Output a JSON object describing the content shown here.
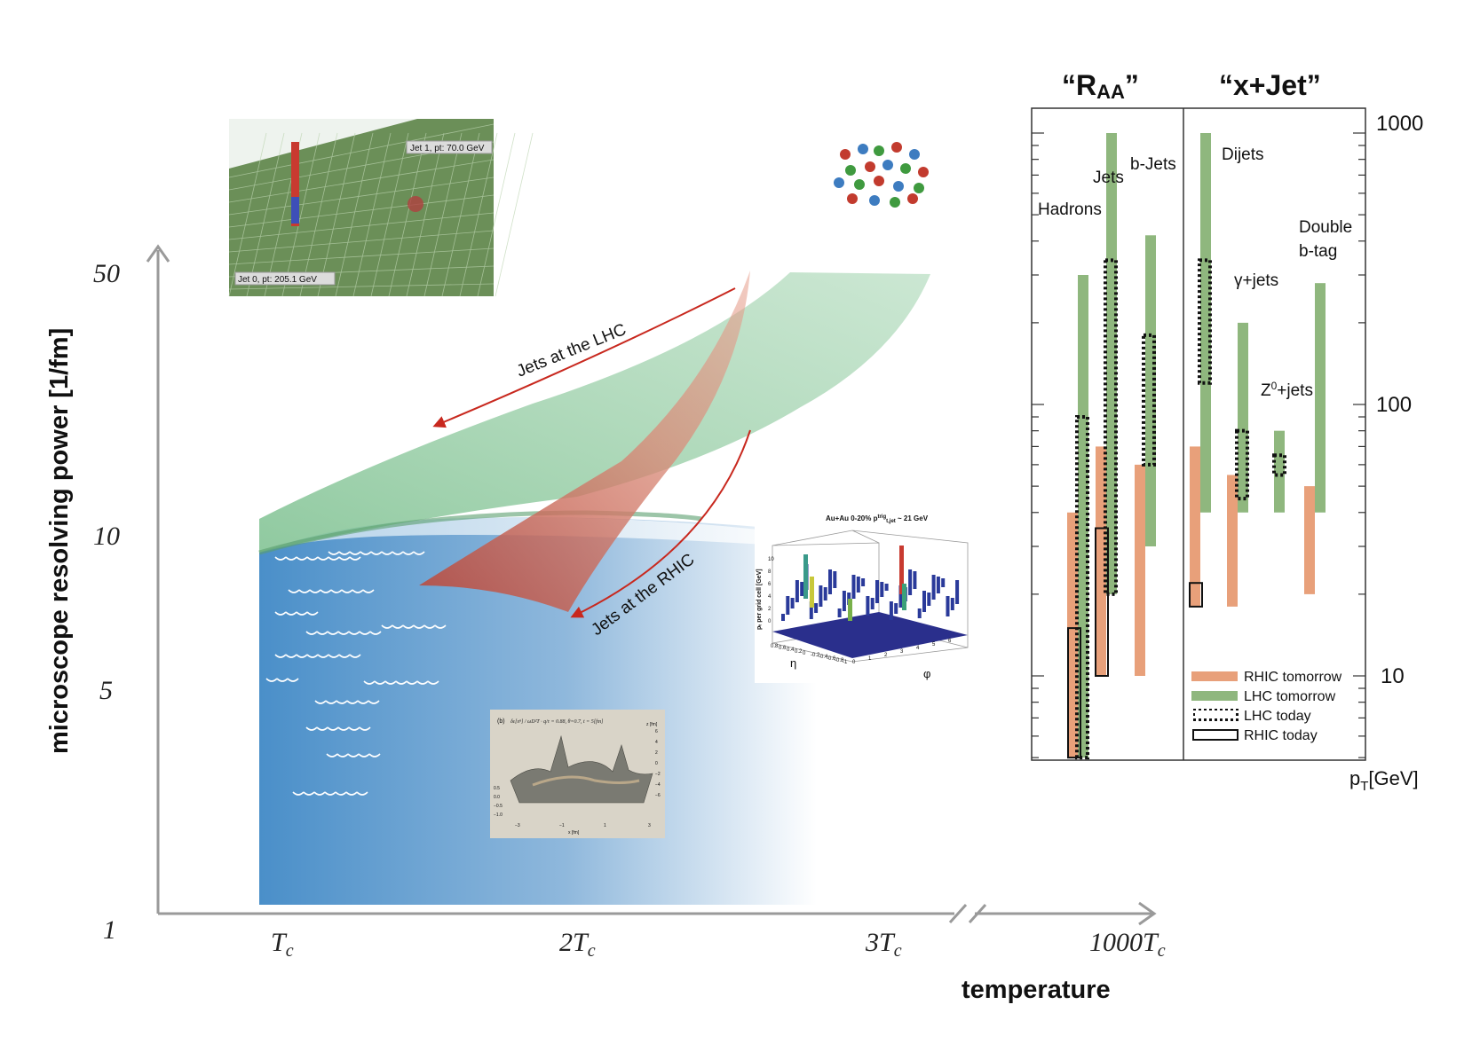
{
  "left_panel": {
    "y_axis_title": "microscope resolving power  [1/fm]",
    "y_ticks": [
      "50",
      "10",
      "5",
      "1"
    ],
    "x_axis_title": "temperature",
    "x_ticks": [
      {
        "base": "T",
        "sub": "c"
      },
      {
        "base": "2T",
        "sub": "c"
      },
      {
        "base": "3T",
        "sub": "c"
      },
      {
        "base": "1000T",
        "sub": "c"
      }
    ],
    "arrow_labels": {
      "lhc": "Jets at the LHC",
      "rhic": "Jets at the RHIC"
    },
    "colors": {
      "lhc_band": "#7cc08f",
      "rhic_band": "#c8574a",
      "liquid": "#4a8fc9",
      "arrow": "#c8281e",
      "axis": "#9a9a9a"
    }
  },
  "insets": {
    "lego_jets": {
      "label_jet1": "Jet 1, pt: 70.0 GeV",
      "label_jet0": "Jet 0, pt: 205.1 GeV"
    },
    "lego_auau": {
      "title": "Au+Au 0-20% p",
      "title_sup": "trig",
      "title_sub": "t,jet",
      "title_tail": " ~ 21 GeV",
      "z_label": "pₜ per grid cell [GeV]",
      "z_ticks": [
        "10",
        "8",
        "6",
        "4",
        "2",
        "0"
      ],
      "eta_ticks": [
        "0.8",
        "0.6",
        "0.4",
        "0.2",
        "0",
        "-0.2",
        "-0.4",
        "-0.6",
        "-0.8",
        "-1"
      ],
      "phi_ticks": [
        "0",
        "1",
        "2",
        "3",
        "4",
        "5",
        "6"
      ],
      "eta_label": "η",
      "phi_label": "φ"
    },
    "surface_plot": {
      "panel": "(b)",
      "formula": "δε[xⁿ] / ωD²T · q/τ = 0.88, θ=0.7, t = 5[fm]",
      "ticks_vertical": [
        "0.5",
        "0.0",
        "−0.5",
        "−1.0"
      ],
      "ticks_x": [
        "−3",
        "−1",
        "1",
        "3"
      ],
      "x_axis_label": "x [fm]",
      "z_axis_label": "z [fm]",
      "z_ticks": [
        "6",
        "4",
        "2",
        "0",
        "−2",
        "−4",
        "−6"
      ]
    },
    "molecule": {
      "atom_colors": [
        "#c23b2e",
        "#3d7cc0",
        "#3f9a3f"
      ]
    }
  },
  "right_panel": {
    "header_raa": "“R",
    "header_raa_sub": "AA",
    "header_raa_close": "”",
    "header_xjet": "“x+Jet”",
    "axis_ticks": [
      "1000",
      "100",
      "10"
    ],
    "axis_label": "p",
    "axis_label_sub": "T",
    "axis_unit": "[GeV]",
    "labels": {
      "hadrons": "Hadrons",
      "jets": "Jets",
      "bjets": "b-Jets",
      "dijets": "Dijets",
      "gammajets": "γ+jets",
      "z0jets_base": "Z",
      "z0jets_sup": "0",
      "z0jets_tail": "+jets",
      "double_btag_1": "Double",
      "double_btag_2": "b-tag"
    },
    "legend": [
      {
        "label": "RHIC tomorrow",
        "style": "rhic_tomorrow"
      },
      {
        "label": "LHC tomorrow",
        "style": "lhc_tomorrow"
      },
      {
        "label": "LHC today",
        "style": "lhc_today"
      },
      {
        "label": "RHIC today",
        "style": "rhic_today"
      }
    ],
    "colors": {
      "rhic_tomorrow": "#e8a07a",
      "lhc_tomorrow": "#8fb77e",
      "border": "#333333"
    },
    "bars": {
      "hadrons": {
        "rhic_tomorrow": [
          5,
          40
        ],
        "lhc_tomorrow": [
          5,
          300
        ],
        "lhc_today": [
          5,
          90
        ],
        "rhic_today": [
          5,
          15
        ]
      },
      "jets": {
        "rhic_tomorrow": [
          10,
          70
        ],
        "lhc_tomorrow": [
          20,
          1000
        ],
        "lhc_today": [
          20,
          340
        ],
        "rhic_today": [
          10,
          35
        ]
      },
      "bjets": {
        "rhic_tomorrow": [
          10,
          60
        ],
        "lhc_tomorrow": [
          30,
          420
        ],
        "lhc_today": [
          60,
          180
        ]
      },
      "dijets": {
        "rhic_tomorrow": [
          18,
          70
        ],
        "lhc_tomorrow": [
          40,
          1000
        ],
        "lhc_today": [
          120,
          340
        ],
        "rhic_today": [
          18,
          22
        ]
      },
      "gammajets": {
        "rhic_tomorrow": [
          18,
          55
        ],
        "lhc_tomorrow": [
          40,
          200
        ],
        "lhc_today": [
          45,
          80
        ]
      },
      "z0jets": {
        "lhc_tomorrow": [
          40,
          80
        ],
        "lhc_today": [
          55,
          65
        ]
      },
      "double_btag": {
        "rhic_tomorrow": [
          20,
          50
        ],
        "lhc_tomorrow": [
          40,
          280
        ]
      }
    }
  }
}
